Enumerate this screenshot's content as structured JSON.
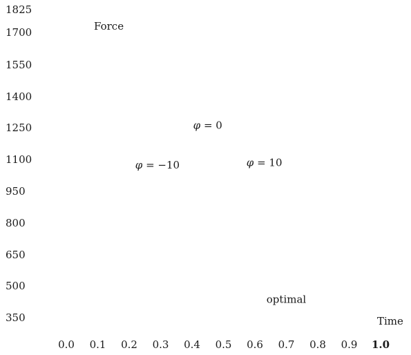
{
  "chart_data": {
    "type": "line",
    "title": "",
    "xlabel": "Time",
    "ylabel": "Force",
    "x_ticks": [
      "0.0",
      "0.1",
      "0.2",
      "0.3",
      "0.4",
      "0.5",
      "0.6",
      "0.7",
      "0.8",
      "0.9",
      "1.0"
    ],
    "y_ticks": [
      "1825",
      "1700",
      "1550",
      "1400",
      "1250",
      "1100",
      "950",
      "800",
      "650",
      "500",
      "350"
    ],
    "xlim": [
      0.0,
      1.0
    ],
    "ylim": [
      350,
      1825
    ],
    "grid": false,
    "annotations": [
      {
        "symbol": "φ",
        "rest": " = 0",
        "x": 0.45,
        "y": 1270
      },
      {
        "symbol": "φ",
        "rest": " = −10",
        "x": 0.29,
        "y": 1080
      },
      {
        "symbol": "φ",
        "rest": " = 10",
        "x": 0.63,
        "y": 1090
      },
      {
        "symbol": "",
        "rest": "optimal",
        "x": 0.7,
        "y": 435
      }
    ],
    "series": []
  }
}
